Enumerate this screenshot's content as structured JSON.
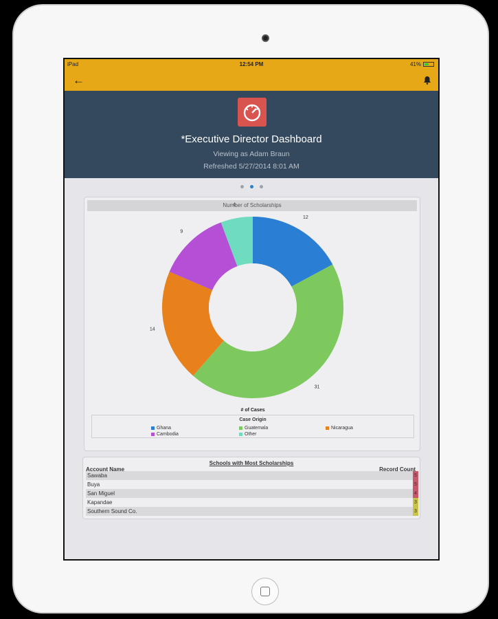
{
  "status_bar": {
    "device": "iPad",
    "time": "12:54 PM",
    "battery": "41%"
  },
  "header": {
    "title": "*Executive Director Dashboard",
    "viewing_as": "Viewing as Adam Braun",
    "refreshed": "Refreshed 5/27/2014 8:01 AM"
  },
  "page_dots": {
    "count": 3,
    "active_index": 1
  },
  "chart_data": {
    "type": "pie",
    "title": "Number of Scholarships",
    "center_label": "",
    "axis_label": "# of Cases",
    "legend_title": "Case Origin",
    "categories": [
      "Ghana",
      "Guatemala",
      "Nicaragua",
      "Cambodia",
      "Other"
    ],
    "values": [
      12,
      31,
      14,
      9,
      4
    ],
    "colors": [
      "#2a7fd4",
      "#7dc95e",
      "#e8811c",
      "#b44fd6",
      "#6fdcc0"
    ],
    "donut": true
  },
  "table": {
    "title": "Schools with Most Scholarships",
    "col_name": "Account Name",
    "col_count": "Record Count",
    "rows": [
      {
        "name": "Sawaba",
        "count": "5",
        "color": "#c8596a"
      },
      {
        "name": "Buya",
        "count": "5",
        "color": "#c8596a"
      },
      {
        "name": "San Miguel",
        "count": "4",
        "color": "#c8596a"
      },
      {
        "name": "Kapandae",
        "count": "3",
        "color": "#c8c448"
      },
      {
        "name": "Southern Sound Co.",
        "count": "3",
        "color": "#c8c448"
      }
    ]
  }
}
